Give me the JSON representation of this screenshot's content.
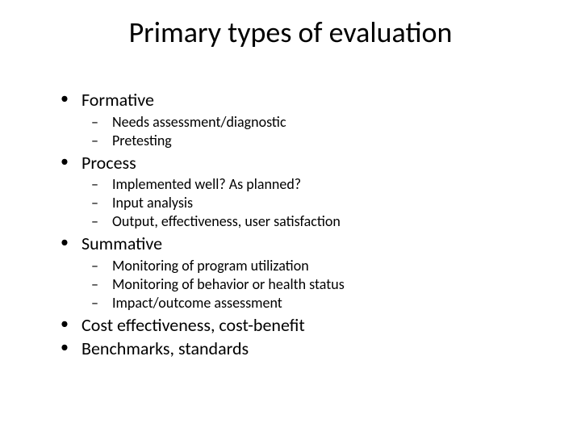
{
  "slide": {
    "title": "Primary types of evaluation",
    "bullets": [
      {
        "text": "Formative",
        "children": [
          "Needs assessment/diagnostic",
          "Pretesting"
        ]
      },
      {
        "text": "Process",
        "children": [
          "Implemented well? As planned?",
          "Input analysis",
          "Output, effectiveness, user satisfaction"
        ]
      },
      {
        "text": "Summative",
        "children": [
          "Monitoring of program utilization",
          "Monitoring of behavior or health status",
          "Impact/outcome assessment"
        ]
      },
      {
        "text": "Cost effectiveness, cost-benefit",
        "children": []
      },
      {
        "text": "Benchmarks, standards",
        "children": []
      }
    ],
    "styling": {
      "background_color": "#ffffff",
      "text_color": "#000000",
      "font_family": "Calibri",
      "title_fontsize": 36,
      "title_fontweight": 400,
      "level1_fontsize": 22,
      "level2_fontsize": 18,
      "level1_marker": "•",
      "level2_marker": "–",
      "slide_width": 720,
      "slide_height": 540
    }
  }
}
